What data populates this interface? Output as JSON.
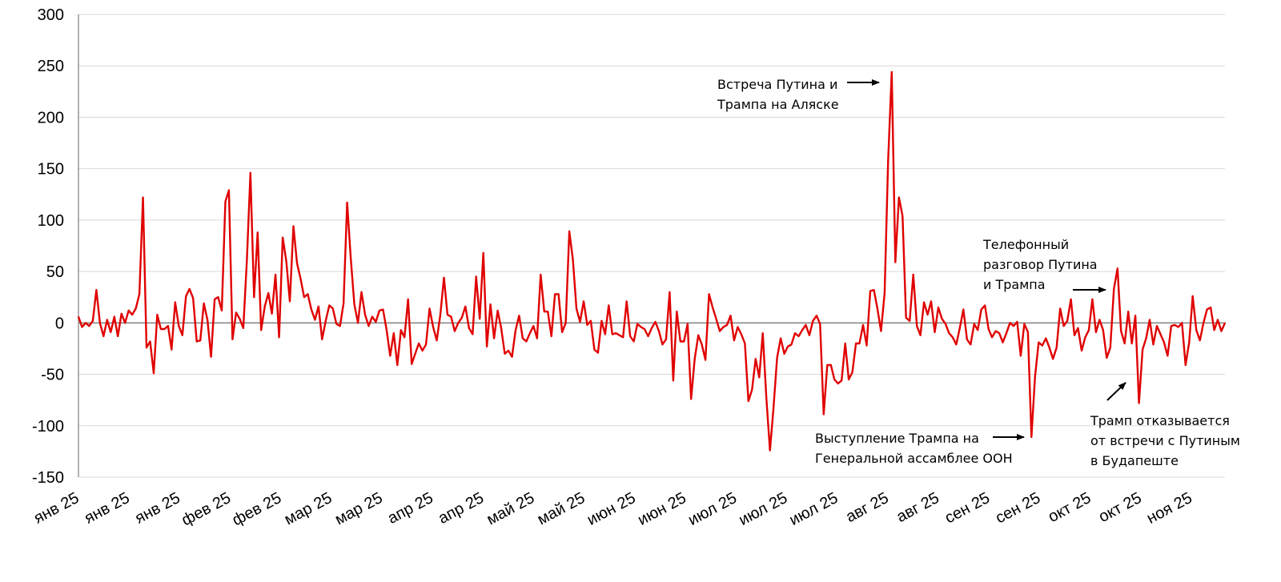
{
  "chart_data": {
    "type": "line",
    "title": "",
    "xlabel": "",
    "ylabel": "",
    "ylim": [
      -150,
      300
    ],
    "yticks": [
      "300",
      "250",
      "200",
      "150",
      "100",
      "50",
      "0",
      "-50",
      "-100",
      "-150"
    ],
    "xticks": [
      "янв 25",
      "янв 25",
      "янв 25",
      "фев 25",
      "фев 25",
      "мар 25",
      "мар 25",
      "апр 25",
      "апр 25",
      "май 25",
      "май 25",
      "июн 25",
      "июн 25",
      "июл 25",
      "июл 25",
      "июл 25",
      "авг 25",
      "авг 25",
      "сен 25",
      "сен 25",
      "окт 25",
      "окт 25",
      "ноя 25"
    ],
    "grid": true,
    "line_color": "#e00000",
    "series": [
      {
        "values": [
          6,
          -4,
          0,
          -3,
          2,
          32,
          0,
          -13,
          3,
          -9,
          6,
          -13,
          9,
          0,
          12,
          8,
          14,
          28,
          122,
          -24,
          -18,
          -49,
          8,
          -6,
          -6,
          -3,
          -26,
          20,
          -3,
          -12,
          26,
          33,
          24,
          -18,
          -17,
          19,
          3,
          -33,
          23,
          25,
          12,
          118,
          129,
          -16,
          10,
          4,
          -5,
          60,
          146,
          25,
          88,
          -7,
          16,
          29,
          9,
          47,
          -14,
          83,
          60,
          21,
          94,
          58,
          43,
          25,
          28,
          13,
          3,
          16,
          -16,
          2,
          17,
          14,
          -1,
          -3,
          19,
          117,
          63,
          18,
          0,
          30,
          8,
          -3,
          6,
          1,
          12,
          13,
          -7,
          -32,
          -10,
          -41,
          -7,
          -14,
          23,
          -40,
          -30,
          -20,
          -27,
          -21,
          14,
          -4,
          -17,
          8,
          44,
          8,
          6,
          -8,
          0,
          5,
          16,
          -5,
          -11,
          45,
          4,
          68,
          -23,
          18,
          -15,
          12,
          -5,
          -30,
          -27,
          -33,
          -7,
          7,
          -15,
          -18,
          -10,
          -3,
          -15,
          47,
          11,
          11,
          -13,
          28,
          28,
          -9,
          0,
          89,
          62,
          14,
          1,
          21,
          -2,
          2,
          -26,
          -29,
          2,
          -11,
          17,
          -11,
          -10,
          -12,
          -14,
          21,
          -13,
          -18,
          -1,
          -4,
          -6,
          -13,
          -5,
          1,
          -8,
          -21,
          -16,
          30,
          -56,
          11,
          -18,
          -18,
          -1,
          -74,
          -35,
          -12,
          -21,
          -36,
          28,
          15,
          4,
          -8,
          -4,
          -2,
          7,
          -17,
          -4,
          -11,
          -20,
          -76,
          -65,
          -35,
          -53,
          -10,
          -73,
          -124,
          -83,
          -34,
          -15,
          -30,
          -23,
          -21,
          -10,
          -13,
          -7,
          -2,
          -12,
          2,
          7,
          -1,
          -89,
          -41,
          -41,
          -55,
          -59,
          -56,
          -20,
          -55,
          -48,
          -20,
          -20,
          -2,
          -22,
          31,
          32,
          14,
          -8,
          29,
          158,
          244,
          59,
          122,
          104,
          5,
          2,
          47,
          -3,
          -12,
          20,
          8,
          21,
          -9,
          15,
          4,
          -1,
          -10,
          -14,
          -21,
          -5,
          13,
          -16,
          -21,
          -1,
          -7,
          13,
          17,
          -6,
          -14,
          -8,
          -10,
          -19,
          -10,
          0,
          -3,
          1,
          -32,
          -1,
          -9,
          -111,
          -52,
          -19,
          -22,
          -15,
          -24,
          -35,
          -24,
          14,
          -3,
          2,
          23,
          -12,
          -5,
          -27,
          -14,
          -7,
          23,
          -9,
          3,
          -7,
          -34,
          -24,
          33,
          53,
          -8,
          -20,
          11,
          -20,
          7,
          -78,
          -26,
          -15,
          3,
          -21,
          -3,
          -11,
          -19,
          -32,
          -3,
          -2,
          -4,
          0,
          -41,
          -19,
          26,
          -7,
          -17,
          0,
          13,
          15,
          -7,
          3,
          -8,
          0
        ]
      }
    ],
    "annotations": [
      {
        "id": "alaska",
        "lines": [
          "Встреча Путина и",
          "Трампа на Аляске"
        ],
        "arrow": "right"
      },
      {
        "id": "un",
        "lines": [
          "Выступление Трампа на",
          "Генеральной ассамблее ООН"
        ],
        "arrow": "right"
      },
      {
        "id": "phone",
        "lines": [
          "Телефонный",
          "разговор Путина",
          "и Трампа"
        ],
        "arrow": "right"
      },
      {
        "id": "budapest",
        "lines": [
          "Трамп отказывается",
          "от встречи с Путиным",
          "в Будапеште"
        ],
        "arrow": "up-right"
      }
    ]
  }
}
